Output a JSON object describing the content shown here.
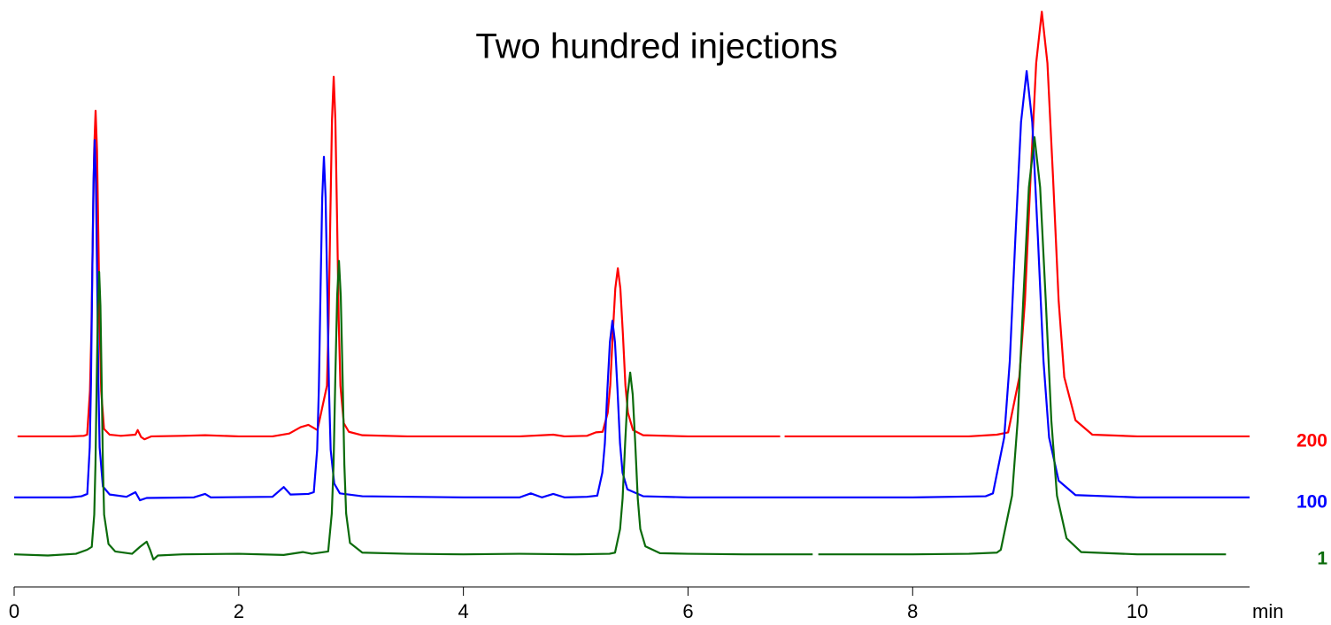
{
  "chart_data": {
    "type": "line",
    "title": "Two hundred injections",
    "xlabel": "min",
    "xlim": [
      0,
      11
    ],
    "xticks": [
      0,
      2,
      4,
      6,
      8,
      10
    ],
    "ylim": [
      0,
      100
    ],
    "series": [
      {
        "name": "200",
        "color": "#ff0000",
        "x": [
          0.03,
          0.5,
          0.62,
          0.65,
          0.675,
          0.6875,
          0.7,
          0.7125,
          0.725,
          0.7375,
          0.75,
          0.7625,
          0.775,
          0.8,
          0.85,
          0.95,
          1.08,
          1.1,
          1.13,
          1.16,
          1.22,
          1.5,
          1.7,
          2.0,
          2.3,
          2.45,
          2.55,
          2.62,
          2.7,
          2.785,
          2.8,
          2.815,
          2.83,
          2.845,
          2.86,
          2.875,
          2.89,
          2.905,
          2.935,
          2.98,
          3.1,
          3.5,
          4.0,
          4.5,
          4.8,
          4.9,
          5.1,
          5.18,
          5.24,
          5.285,
          5.3075,
          5.33,
          5.3525,
          5.375,
          5.3975,
          5.42,
          5.4425,
          5.465,
          5.51,
          5.6,
          6.0,
          6.5,
          6.82,
          6.84,
          6.86,
          7.5,
          8.0,
          8.5,
          8.75,
          8.85,
          8.95,
          9.0,
          9.05,
          9.1,
          9.15,
          9.2,
          9.25,
          9.3,
          9.35,
          9.45,
          9.6,
          10.0,
          10.5,
          11.0
        ],
        "values": [
          25.7,
          25.7,
          25.8,
          26.0,
          33.6,
          43.8,
          60.2,
          75.5,
          82.3,
          75.5,
          60.2,
          43.8,
          33.6,
          27.0,
          26.0,
          25.8,
          26.0,
          26.8,
          25.6,
          25.2,
          25.7,
          25.8,
          25.9,
          25.7,
          25.7,
          26.2,
          27.3,
          27.7,
          26.8,
          34.5,
          45.7,
          63.8,
          80.7,
          88.2,
          80.7,
          63.8,
          45.7,
          34.5,
          28.0,
          26.5,
          25.9,
          25.7,
          25.7,
          25.7,
          26.0,
          25.7,
          25.8,
          26.4,
          26.5,
          29.8,
          34.6,
          43.5,
          51.4,
          54.9,
          51.4,
          43.5,
          34.6,
          29.8,
          26.8,
          25.9,
          25.7,
          25.7,
          25.7,
          null,
          25.7,
          25.7,
          25.7,
          25.7,
          26.0,
          26.4,
          36.0,
          49.3,
          70.7,
          90.6,
          99.5,
          90.6,
          70.7,
          49.3,
          36.0,
          28.5,
          26.0,
          25.7,
          25.7,
          25.7
        ]
      },
      {
        "name": "100",
        "color": "#0000ff",
        "x": [
          0.0,
          0.5,
          0.6,
          0.651,
          0.673,
          0.684,
          0.695,
          0.706,
          0.717,
          0.728,
          0.739,
          0.75,
          0.761,
          0.79,
          0.85,
          1.0,
          1.08,
          1.12,
          1.18,
          1.6,
          1.7,
          1.75,
          2.3,
          2.4,
          2.46,
          2.62,
          2.668,
          2.698,
          2.713,
          2.728,
          2.743,
          2.758,
          2.773,
          2.788,
          2.803,
          2.818,
          2.85,
          2.9,
          3.1,
          4.0,
          4.5,
          4.6,
          4.7,
          4.8,
          4.9,
          5.1,
          5.192,
          5.237,
          5.2595,
          5.282,
          5.3045,
          5.327,
          5.3495,
          5.372,
          5.3945,
          5.417,
          5.46,
          5.6,
          6.0,
          7.0,
          8.0,
          8.65,
          8.715,
          8.815,
          8.865,
          8.915,
          8.965,
          9.015,
          9.065,
          9.115,
          9.165,
          9.215,
          9.3,
          9.45,
          10.0,
          11.0
        ],
        "values": [
          15.1,
          15.1,
          15.3,
          15.7,
          23.8,
          35.0,
          53.0,
          69.7,
          77.2,
          69.7,
          53.0,
          35.0,
          23.8,
          17.0,
          15.6,
          15.2,
          16.0,
          14.6,
          15.0,
          15.1,
          15.7,
          15.1,
          15.2,
          16.9,
          15.6,
          15.7,
          16.0,
          23.4,
          34.0,
          51.2,
          67.2,
          74.3,
          67.2,
          51.2,
          34.0,
          23.4,
          17.5,
          15.8,
          15.3,
          15.1,
          15.1,
          15.8,
          15.1,
          15.7,
          15.1,
          15.2,
          15.4,
          19.4,
          24.5,
          33.8,
          42.1,
          45.8,
          42.1,
          33.8,
          24.5,
          19.4,
          16.5,
          15.3,
          15.1,
          15.1,
          15.1,
          15.3,
          15.8,
          25.5,
          38.8,
          60.3,
          80.3,
          89.2,
          80.3,
          60.3,
          38.8,
          25.5,
          18.0,
          15.5,
          15.1,
          15.1
        ]
      },
      {
        "name": "1",
        "color": "#0b6b0b",
        "x": [
          0.0,
          0.3,
          0.55,
          0.65,
          0.691,
          0.713,
          0.724,
          0.735,
          0.746,
          0.757,
          0.768,
          0.779,
          0.79,
          0.801,
          0.84,
          0.9,
          1.05,
          1.12,
          1.18,
          1.21,
          1.24,
          1.28,
          1.5,
          2.0,
          2.4,
          2.57,
          2.65,
          2.796,
          2.828,
          2.844,
          2.86,
          2.876,
          2.892,
          2.908,
          2.924,
          2.94,
          2.956,
          2.99,
          3.1,
          3.5,
          4.0,
          4.5,
          5.0,
          5.3,
          5.35,
          5.395,
          5.4175,
          5.44,
          5.4625,
          5.485,
          5.5075,
          5.53,
          5.5525,
          5.575,
          5.62,
          5.75,
          6.0,
          6.5,
          7.11,
          7.13,
          7.16,
          7.5,
          8.0,
          8.5,
          8.75,
          8.785,
          8.885,
          8.935,
          8.985,
          9.035,
          9.085,
          9.135,
          9.185,
          9.235,
          9.285,
          9.37,
          9.5,
          10.0,
          10.79
        ],
        "values": [
          5.2,
          5.0,
          5.3,
          6.0,
          6.5,
          12.1,
          20.9,
          35.2,
          48.4,
          54.3,
          48.4,
          35.2,
          20.9,
          12.1,
          7.0,
          5.7,
          5.3,
          6.5,
          7.4,
          6.0,
          4.3,
          5.0,
          5.2,
          5.3,
          5.1,
          5.6,
          5.3,
          5.7,
          12.3,
          20.8,
          36.3,
          50.1,
          56.2,
          50.1,
          36.3,
          20.8,
          12.3,
          7.2,
          5.5,
          5.3,
          5.2,
          5.3,
          5.2,
          5.3,
          5.5,
          9.6,
          14.9,
          24.5,
          33.0,
          36.8,
          33.0,
          24.5,
          14.9,
          9.6,
          6.6,
          5.4,
          5.3,
          5.2,
          5.2,
          null,
          5.2,
          5.2,
          5.2,
          5.3,
          5.5,
          6.0,
          15.4,
          28.4,
          49.4,
          69.0,
          77.7,
          69.0,
          49.4,
          28.4,
          15.4,
          8.0,
          5.6,
          5.2,
          5.2
        ]
      }
    ]
  }
}
